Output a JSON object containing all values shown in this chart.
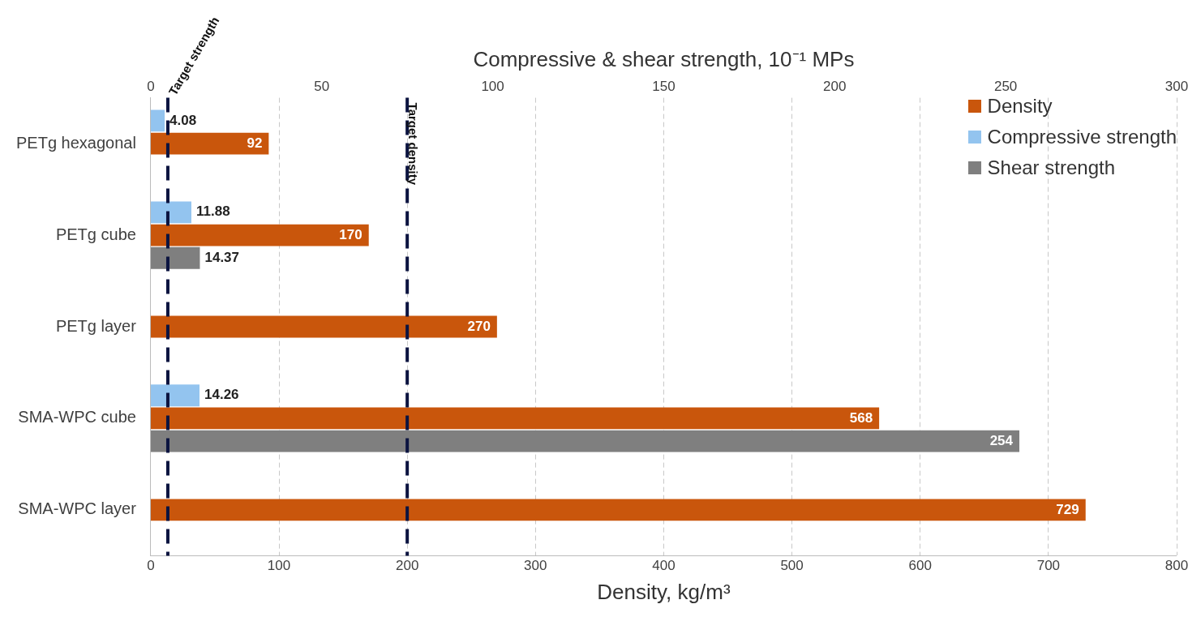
{
  "chart_data": {
    "type": "bar",
    "orientation": "horizontal",
    "categories": [
      "PETg hexagonal",
      "PETg cube",
      "PETg layer",
      "SMA-WPC cube",
      "SMA-WPC layer"
    ],
    "series": [
      {
        "name": "Density",
        "color": "#c9560c",
        "values": [
          92,
          170,
          270,
          568,
          729
        ]
      },
      {
        "name": "Compressive strength",
        "color": "#93c4ef",
        "axis": "x2",
        "values": [
          4.08,
          11.88,
          null,
          14.26,
          null
        ]
      },
      {
        "name": "Shear strength",
        "color": "#7f7f7f",
        "axis": "x2",
        "values": [
          null,
          14.37,
          null,
          254,
          null
        ]
      }
    ],
    "xlabel": "Density, kg/m³",
    "x2label": "Compressive & shear strength, 10⁻¹ MPs",
    "xlim": [
      0,
      800
    ],
    "xticks": [
      0,
      100,
      200,
      300,
      400,
      500,
      600,
      700,
      800
    ],
    "x2lim": [
      0,
      300
    ],
    "x2ticks": [
      0,
      50,
      100,
      150,
      200,
      250,
      300
    ],
    "ref_lines": [
      {
        "axis": "x2",
        "value": 5,
        "label": "Target strength",
        "color": "#0c1440",
        "line_style": "dashed"
      },
      {
        "axis": "x",
        "value": 200,
        "label": "Target density",
        "color": "#0c1440",
        "line_style": "dashed"
      }
    ],
    "data_labels": true,
    "grid": "x",
    "legend": "top right"
  }
}
